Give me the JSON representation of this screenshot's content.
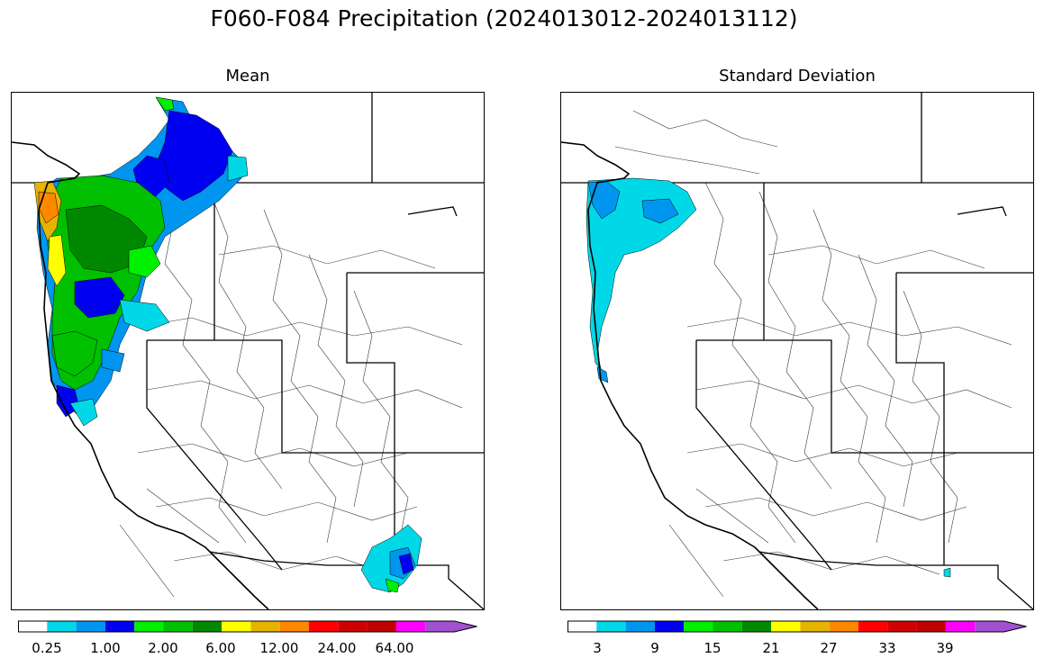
{
  "figure": {
    "suptitle": "F060-F084 Precipitation (2024013012-2024013112)"
  },
  "panels": [
    {
      "title": "Mean",
      "colorbar": {
        "colors": [
          "#ffffff",
          "#00d8e8",
          "#0096f0",
          "#0000f0",
          "#00f000",
          "#00c000",
          "#008800",
          "#ffff00",
          "#e6b400",
          "#ff8800",
          "#ff0000",
          "#d00000",
          "#c00000",
          "#ff00ff",
          "#a050d0"
        ],
        "tick_labels": [
          "0.25",
          "1.00",
          "2.00",
          "6.00",
          "12.00",
          "24.00",
          "64.00"
        ]
      }
    },
    {
      "title": "Standard Deviation",
      "colorbar": {
        "colors": [
          "#ffffff",
          "#00d8e8",
          "#0096f0",
          "#0000f0",
          "#00f000",
          "#00c000",
          "#008800",
          "#ffff00",
          "#e6b400",
          "#ff8800",
          "#ff0000",
          "#d00000",
          "#c00000",
          "#ff00ff",
          "#a050d0"
        ],
        "tick_labels": [
          "3",
          "9",
          "15",
          "21",
          "27",
          "33",
          "39"
        ]
      }
    }
  ]
}
